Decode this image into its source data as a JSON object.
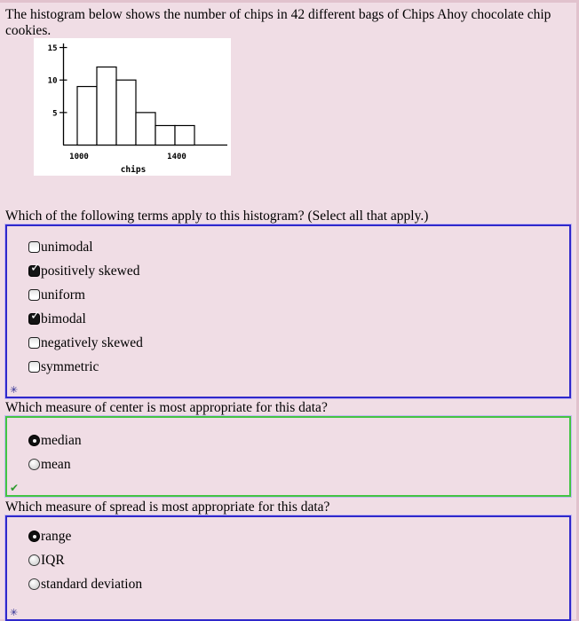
{
  "page": {
    "background": "#f0dde5"
  },
  "intro": {
    "text": "The histogram below shows the number of chips in 42 different bags of Chips Ahoy chocolate chip cookies."
  },
  "chart_data": {
    "type": "bar",
    "subtype": "histogram",
    "title": "",
    "xlabel": "chips",
    "ylabel": "",
    "values": [
      9,
      12,
      10,
      5,
      3,
      3
    ],
    "total_bags": 42,
    "bin_edges": [
      1000,
      1080,
      1160,
      1240,
      1320,
      1400,
      1480
    ],
    "x_tick_labels": [
      {
        "label": "1000",
        "bin_edge_index": 0
      },
      {
        "label": "1400",
        "bin_edge_index": 5
      }
    ],
    "yticks": [
      5,
      10,
      15
    ],
    "ylim": [
      0,
      15.5
    ],
    "grid": false,
    "bar_fill": "#ffffff",
    "bar_stroke": "#000000"
  },
  "icons": {
    "checkbox_check": "✓",
    "correct_check": "✔",
    "status_asterisk": "✳",
    "correct_check_color": "#2e9b2e",
    "asterisk_color": "#2b2b91"
  },
  "questions": [
    {
      "prompt": "Which of the following terms apply to this histogram? (Select all that apply.)",
      "type": "checkbox",
      "border_color": "#2f28cb",
      "status_icon": "asterisk",
      "options": [
        {
          "label": "unimodal",
          "checked": false
        },
        {
          "label": "positively skewed",
          "checked": true
        },
        {
          "label": "uniform",
          "checked": false
        },
        {
          "label": "bimodal",
          "checked": true
        },
        {
          "label": "negatively skewed",
          "checked": false
        },
        {
          "label": "symmetric",
          "checked": false
        }
      ]
    },
    {
      "prompt": "Which measure of center is most appropriate for this data?",
      "type": "radio",
      "border_color": "#43c443",
      "status_icon": "check",
      "options": [
        {
          "label": "median",
          "checked": true
        },
        {
          "label": "mean",
          "checked": false
        }
      ]
    },
    {
      "prompt": "Which measure of spread is most appropriate for this data?",
      "type": "radio",
      "border_color": "#2f28cb",
      "status_icon": "asterisk",
      "options": [
        {
          "label": "range",
          "checked": true
        },
        {
          "label": "IQR",
          "checked": false
        },
        {
          "label": "standard deviation",
          "checked": false
        }
      ]
    }
  ]
}
